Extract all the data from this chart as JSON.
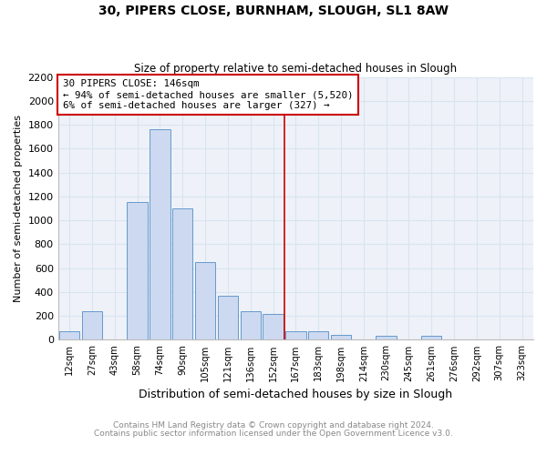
{
  "title": "30, PIPERS CLOSE, BURNHAM, SLOUGH, SL1 8AW",
  "subtitle": "Size of property relative to semi-detached houses in Slough",
  "xlabel": "Distribution of semi-detached houses by size in Slough",
  "ylabel": "Number of semi-detached properties",
  "categories": [
    "12sqm",
    "27sqm",
    "43sqm",
    "58sqm",
    "74sqm",
    "90sqm",
    "105sqm",
    "121sqm",
    "136sqm",
    "152sqm",
    "167sqm",
    "183sqm",
    "198sqm",
    "214sqm",
    "230sqm",
    "245sqm",
    "261sqm",
    "276sqm",
    "292sqm",
    "307sqm",
    "323sqm"
  ],
  "values": [
    75,
    240,
    0,
    1150,
    1760,
    1100,
    650,
    370,
    240,
    220,
    70,
    70,
    45,
    0,
    30,
    0,
    30,
    0,
    0,
    0,
    0
  ],
  "bar_color": "#ccd9f0",
  "bar_edge_color": "#6699cc",
  "vline_label": "30 PIPERS CLOSE: 146sqm",
  "annotation_line1": "← 94% of semi-detached houses are smaller (5,520)",
  "annotation_line2": "6% of semi-detached houses are larger (327) →",
  "annotation_box_color": "#ffffff",
  "annotation_box_edge": "#cc0000",
  "vline_color": "#cc0000",
  "ylim": [
    0,
    2200
  ],
  "yticks": [
    0,
    200,
    400,
    600,
    800,
    1000,
    1200,
    1400,
    1600,
    1800,
    2000,
    2200
  ],
  "grid_color": "#d8e4f0",
  "bg_color": "#eef2f8",
  "footnote1": "Contains HM Land Registry data © Crown copyright and database right 2024.",
  "footnote2": "Contains public sector information licensed under the Open Government Licence v3.0."
}
